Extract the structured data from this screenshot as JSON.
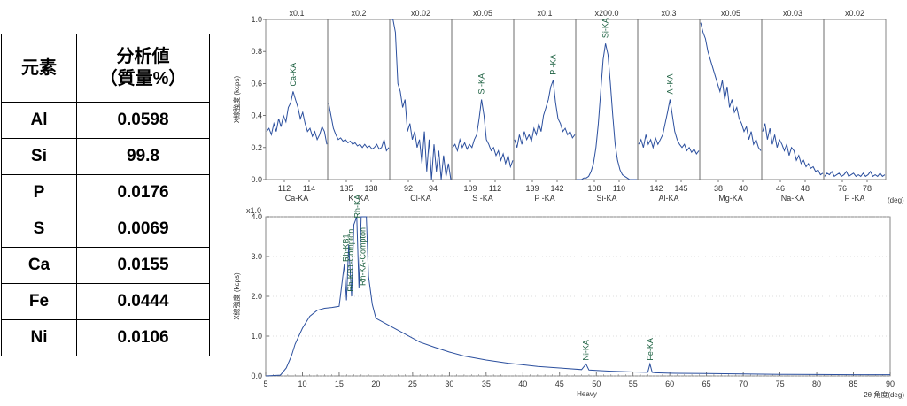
{
  "table": {
    "header_element": "元素",
    "header_value_line1": "分析値",
    "header_value_line2": "（質量%）",
    "rows": [
      {
        "element": "Al",
        "value": "0.0598"
      },
      {
        "element": "Si",
        "value": "99.8"
      },
      {
        "element": "P",
        "value": "0.0176"
      },
      {
        "element": "S",
        "value": "0.0069"
      },
      {
        "element": "Ca",
        "value": "0.0155"
      },
      {
        "element": "Fe",
        "value": "0.0444"
      },
      {
        "element": "Ni",
        "value": "0.0106"
      }
    ]
  },
  "chart_data": [
    {
      "type": "line",
      "ylabel": "X線強度 (kcps)",
      "ylim": [
        0,
        1.0
      ],
      "yticks": [
        "0.0",
        "0.2",
        "0.4",
        "0.6",
        "0.8",
        "1.0"
      ],
      "unit": "(deg)",
      "panels": [
        {
          "scale": "x0.1",
          "ticks": [
            "112",
            "114"
          ],
          "label": "Ca-KA",
          "peak": "Ca-KA",
          "values": [
            0.3,
            0.32,
            0.28,
            0.35,
            0.3,
            0.38,
            0.33,
            0.4,
            0.36,
            0.45,
            0.48,
            0.55,
            0.5,
            0.45,
            0.38,
            0.42,
            0.35,
            0.3,
            0.32,
            0.27,
            0.3,
            0.25,
            0.28,
            0.33,
            0.3,
            0.22
          ]
        },
        {
          "scale": "x0.2",
          "ticks": [
            "135",
            "138"
          ],
          "label": "K -KA",
          "peak": "",
          "values": [
            0.48,
            0.4,
            0.32,
            0.28,
            0.25,
            0.26,
            0.24,
            0.25,
            0.23,
            0.24,
            0.22,
            0.23,
            0.21,
            0.22,
            0.2,
            0.22,
            0.2,
            0.21,
            0.19,
            0.2,
            0.22,
            0.19,
            0.2,
            0.25,
            0.18,
            0.2
          ]
        },
        {
          "scale": "x0.02",
          "ticks": [
            "92",
            "94"
          ],
          "label": "Cl-KA",
          "peak": "",
          "values": [
            1.0,
            1.0,
            0.92,
            0.6,
            0.55,
            0.45,
            0.5,
            0.3,
            0.35,
            0.25,
            0.3,
            0.2,
            0.25,
            0.1,
            0.3,
            0.05,
            0.25,
            0.0,
            0.22,
            0.05,
            0.18,
            0.0,
            0.15,
            0.02,
            0.1,
            0.0
          ]
        },
        {
          "scale": "x0.05",
          "ticks": [
            "109",
            "112"
          ],
          "label": "S -KA",
          "peak": "S -KA",
          "values": [
            0.2,
            0.22,
            0.18,
            0.25,
            0.2,
            0.23,
            0.19,
            0.22,
            0.2,
            0.25,
            0.28,
            0.38,
            0.5,
            0.4,
            0.25,
            0.22,
            0.18,
            0.2,
            0.15,
            0.18,
            0.12,
            0.16,
            0.1,
            0.15,
            0.08,
            0.12
          ]
        },
        {
          "scale": "x0.1",
          "ticks": [
            "139",
            "142"
          ],
          "label": "P -KA",
          "peak": "P -KA",
          "values": [
            0.25,
            0.2,
            0.28,
            0.22,
            0.3,
            0.25,
            0.28,
            0.24,
            0.32,
            0.28,
            0.35,
            0.3,
            0.4,
            0.45,
            0.5,
            0.58,
            0.62,
            0.48,
            0.38,
            0.35,
            0.3,
            0.32,
            0.28,
            0.3,
            0.26,
            0.28
          ]
        },
        {
          "scale": "x200.0",
          "ticks": [
            "108",
            "110"
          ],
          "label": "Si-KA",
          "peak": "Si-KA",
          "values": [
            0.0,
            0.0,
            0.0,
            0.01,
            0.01,
            0.02,
            0.05,
            0.1,
            0.2,
            0.35,
            0.55,
            0.75,
            0.85,
            0.78,
            0.6,
            0.4,
            0.22,
            0.12,
            0.06,
            0.03,
            0.02,
            0.01,
            0.0,
            0.0,
            0.0,
            0.0
          ]
        },
        {
          "scale": "x0.3",
          "ticks": [
            "142",
            "145"
          ],
          "label": "Al-KA",
          "peak": "Al-KA",
          "values": [
            0.22,
            0.25,
            0.2,
            0.28,
            0.22,
            0.25,
            0.2,
            0.26,
            0.22,
            0.25,
            0.28,
            0.35,
            0.42,
            0.5,
            0.4,
            0.3,
            0.25,
            0.22,
            0.2,
            0.22,
            0.18,
            0.2,
            0.17,
            0.19,
            0.16,
            0.18
          ]
        },
        {
          "scale": "x0.05",
          "ticks": [
            "38",
            "40"
          ],
          "label": "Mg-KA",
          "peak": "",
          "values": [
            0.98,
            0.92,
            0.88,
            0.8,
            0.75,
            0.7,
            0.65,
            0.6,
            0.55,
            0.62,
            0.5,
            0.58,
            0.45,
            0.5,
            0.42,
            0.45,
            0.38,
            0.35,
            0.3,
            0.33,
            0.25,
            0.3,
            0.22,
            0.25,
            0.2,
            0.18
          ]
        },
        {
          "scale": "x0.03",
          "ticks": [
            "46",
            "48"
          ],
          "label": "Na-KA",
          "peak": "",
          "values": [
            0.3,
            0.35,
            0.25,
            0.32,
            0.22,
            0.28,
            0.2,
            0.25,
            0.22,
            0.18,
            0.22,
            0.15,
            0.2,
            0.18,
            0.12,
            0.15,
            0.1,
            0.12,
            0.08,
            0.1,
            0.07,
            0.08,
            0.05,
            0.06,
            0.03,
            0.04
          ]
        },
        {
          "scale": "x0.02",
          "ticks": [
            "76",
            "78"
          ],
          "label": "F -KA",
          "peak": "",
          "values": [
            0.02,
            0.04,
            0.03,
            0.05,
            0.02,
            0.03,
            0.04,
            0.02,
            0.03,
            0.05,
            0.02,
            0.03,
            0.04,
            0.02,
            0.03,
            0.02,
            0.04,
            0.02,
            0.03,
            0.05,
            0.02,
            0.03,
            0.02,
            0.04,
            0.02,
            0.03
          ]
        }
      ]
    },
    {
      "type": "line",
      "scale": "x1.0",
      "ylabel": "X線強度 (kcps)",
      "xlabel": "Heavy",
      "xlabel_right": "2θ 角度(deg)",
      "xlim": [
        5,
        90
      ],
      "ylim": [
        0,
        4.0
      ],
      "xticks": [
        "5",
        "10",
        "15",
        "20",
        "25",
        "30",
        "35",
        "40",
        "45",
        "50",
        "55",
        "60",
        "65",
        "70",
        "75",
        "80",
        "85",
        "90"
      ],
      "yticks": [
        "0.0",
        "1.0",
        "2.0",
        "3.0",
        "4.0"
      ],
      "series": [
        {
          "x": [
            5,
            7,
            7.8,
            8.5,
            9,
            10,
            11,
            12,
            13,
            14,
            15,
            15.7,
            16.0,
            16.3,
            16.7,
            17.0,
            17.4,
            17.7,
            18.0,
            18.3,
            18.7,
            19.0,
            19.5,
            20,
            21,
            22,
            23,
            24,
            25,
            26,
            28,
            30,
            32,
            35,
            38,
            40,
            42,
            45,
            48,
            48.6,
            49,
            50,
            52,
            55,
            57,
            57.3,
            57.6,
            58,
            60,
            65,
            70,
            75,
            80,
            85,
            90
          ],
          "y": [
            0.0,
            0.02,
            0.2,
            0.5,
            0.8,
            1.2,
            1.5,
            1.65,
            1.7,
            1.72,
            1.75,
            2.8,
            1.9,
            3.3,
            2.0,
            3.8,
            4.0,
            2.2,
            4.0,
            4.0,
            4.0,
            2.5,
            1.8,
            1.45,
            1.35,
            1.25,
            1.15,
            1.05,
            0.95,
            0.85,
            0.72,
            0.6,
            0.5,
            0.4,
            0.32,
            0.28,
            0.24,
            0.2,
            0.16,
            0.3,
            0.15,
            0.14,
            0.12,
            0.1,
            0.09,
            0.3,
            0.09,
            0.08,
            0.07,
            0.06,
            0.05,
            0.04,
            0.035,
            0.03,
            0.03
          ]
        }
      ],
      "annotations": [
        "Rh-KB1",
        "Rh-KB1-Compton",
        "Rh-KA",
        "Rh-KA-Compton",
        "Ni-KA",
        "Fe-KA"
      ]
    }
  ]
}
